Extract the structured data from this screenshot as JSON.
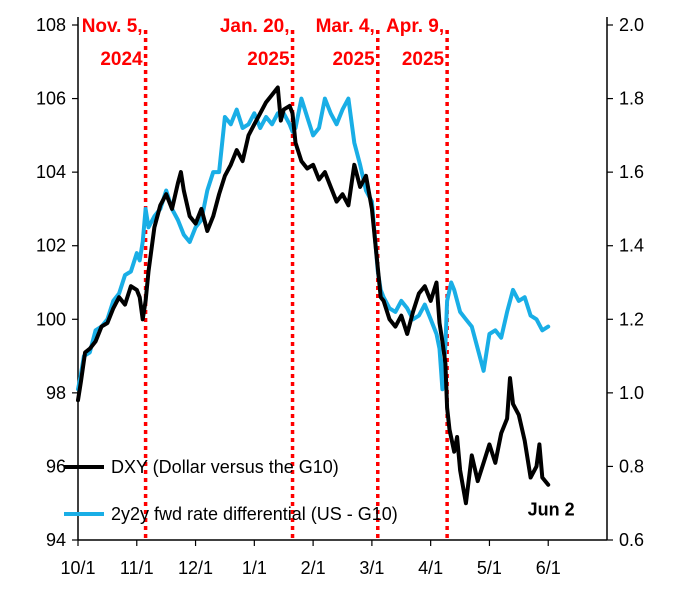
{
  "chart_data": {
    "type": "line",
    "title": "",
    "xlabel": "",
    "ylabel": "",
    "x_tick_labels": [
      "10/1",
      "11/1",
      "12/1",
      "1/1",
      "2/1",
      "3/1",
      "4/1",
      "5/1",
      "6/1"
    ],
    "x_range_months": [
      0,
      9
    ],
    "y_left": {
      "range": [
        94,
        108
      ],
      "ticks": [
        94,
        96,
        98,
        100,
        102,
        104,
        106,
        108
      ]
    },
    "y_right": {
      "range": [
        0.6,
        2.0
      ],
      "ticks": [
        "0.6",
        "0.8",
        "1.0",
        "1.2",
        "1.4",
        "1.6",
        "1.8",
        "2.0"
      ]
    },
    "grid": false,
    "legend_position": "bottom-left",
    "event_lines": [
      {
        "x": 1.15,
        "line1": "Nov. 5,",
        "line2": "2024",
        "color": "#ff0000"
      },
      {
        "x": 3.65,
        "line1": "Jan. 20,",
        "line2": "2025",
        "color": "#ff0000"
      },
      {
        "x": 5.1,
        "line1": "Mar. 4,",
        "line2": "2025",
        "color": "#ff0000"
      },
      {
        "x": 6.28,
        "line1": "Apr. 9,",
        "line2": "2025",
        "color": "#ff0000"
      }
    ],
    "annotations": [
      {
        "text": "Jun 2",
        "x": 8.05,
        "y": 94.8
      }
    ],
    "series": [
      {
        "name": "DXY (Dollar versus the G10)",
        "axis": "left",
        "color": "#000000",
        "points": [
          [
            0.0,
            97.8
          ],
          [
            0.05,
            98.3
          ],
          [
            0.12,
            99.1
          ],
          [
            0.2,
            99.2
          ],
          [
            0.3,
            99.4
          ],
          [
            0.4,
            99.8
          ],
          [
            0.5,
            99.9
          ],
          [
            0.6,
            100.3
          ],
          [
            0.7,
            100.6
          ],
          [
            0.8,
            100.4
          ],
          [
            0.9,
            100.9
          ],
          [
            1.0,
            100.8
          ],
          [
            1.05,
            100.6
          ],
          [
            1.1,
            100.0
          ],
          [
            1.15,
            100.5
          ],
          [
            1.2,
            101.3
          ],
          [
            1.3,
            102.5
          ],
          [
            1.4,
            103.1
          ],
          [
            1.5,
            103.4
          ],
          [
            1.6,
            103.0
          ],
          [
            1.7,
            103.7
          ],
          [
            1.75,
            104.0
          ],
          [
            1.8,
            103.5
          ],
          [
            1.9,
            102.8
          ],
          [
            2.0,
            102.6
          ],
          [
            2.1,
            103.0
          ],
          [
            2.2,
            102.4
          ],
          [
            2.3,
            102.8
          ],
          [
            2.4,
            103.4
          ],
          [
            2.5,
            103.9
          ],
          [
            2.6,
            104.2
          ],
          [
            2.7,
            104.6
          ],
          [
            2.8,
            104.3
          ],
          [
            2.9,
            105.0
          ],
          [
            3.0,
            105.3
          ],
          [
            3.1,
            105.6
          ],
          [
            3.2,
            105.9
          ],
          [
            3.3,
            106.1
          ],
          [
            3.4,
            106.3
          ],
          [
            3.45,
            105.4
          ],
          [
            3.5,
            105.7
          ],
          [
            3.6,
            105.8
          ],
          [
            3.65,
            105.6
          ],
          [
            3.7,
            104.8
          ],
          [
            3.8,
            104.3
          ],
          [
            3.9,
            104.1
          ],
          [
            4.0,
            104.2
          ],
          [
            4.1,
            103.8
          ],
          [
            4.2,
            104.0
          ],
          [
            4.3,
            103.6
          ],
          [
            4.4,
            103.2
          ],
          [
            4.5,
            103.4
          ],
          [
            4.6,
            103.1
          ],
          [
            4.7,
            104.2
          ],
          [
            4.8,
            103.6
          ],
          [
            4.9,
            103.9
          ],
          [
            5.0,
            103.0
          ],
          [
            5.1,
            101.4
          ],
          [
            5.15,
            100.6
          ],
          [
            5.2,
            100.5
          ],
          [
            5.3,
            100.0
          ],
          [
            5.4,
            99.8
          ],
          [
            5.5,
            100.1
          ],
          [
            5.6,
            99.6
          ],
          [
            5.7,
            100.2
          ],
          [
            5.8,
            100.7
          ],
          [
            5.9,
            100.9
          ],
          [
            6.0,
            100.5
          ],
          [
            6.1,
            101.0
          ],
          [
            6.15,
            99.9
          ],
          [
            6.2,
            99.4
          ],
          [
            6.25,
            98.8
          ],
          [
            6.28,
            97.6
          ],
          [
            6.32,
            97.0
          ],
          [
            6.4,
            96.4
          ],
          [
            6.45,
            96.8
          ],
          [
            6.5,
            95.9
          ],
          [
            6.6,
            95.0
          ],
          [
            6.7,
            96.3
          ],
          [
            6.8,
            95.6
          ],
          [
            6.9,
            96.1
          ],
          [
            7.0,
            96.6
          ],
          [
            7.1,
            96.1
          ],
          [
            7.2,
            96.9
          ],
          [
            7.3,
            97.3
          ],
          [
            7.35,
            98.4
          ],
          [
            7.4,
            97.7
          ],
          [
            7.5,
            97.4
          ],
          [
            7.6,
            96.7
          ],
          [
            7.7,
            95.7
          ],
          [
            7.8,
            96.0
          ],
          [
            7.85,
            96.6
          ],
          [
            7.9,
            95.7
          ],
          [
            8.0,
            95.5
          ]
        ]
      },
      {
        "name": "2y2y fwd rate differential (US - G10)",
        "axis": "right",
        "color": "#19aee6",
        "points": [
          [
            0.0,
            1.01
          ],
          [
            0.05,
            1.05
          ],
          [
            0.1,
            1.1
          ],
          [
            0.2,
            1.11
          ],
          [
            0.3,
            1.17
          ],
          [
            0.4,
            1.18
          ],
          [
            0.5,
            1.2
          ],
          [
            0.6,
            1.25
          ],
          [
            0.7,
            1.27
          ],
          [
            0.8,
            1.32
          ],
          [
            0.9,
            1.33
          ],
          [
            1.0,
            1.38
          ],
          [
            1.05,
            1.36
          ],
          [
            1.1,
            1.41
          ],
          [
            1.15,
            1.5
          ],
          [
            1.2,
            1.45
          ],
          [
            1.3,
            1.48
          ],
          [
            1.4,
            1.5
          ],
          [
            1.5,
            1.55
          ],
          [
            1.6,
            1.5
          ],
          [
            1.7,
            1.47
          ],
          [
            1.8,
            1.43
          ],
          [
            1.9,
            1.41
          ],
          [
            2.0,
            1.45
          ],
          [
            2.1,
            1.47
          ],
          [
            2.2,
            1.55
          ],
          [
            2.3,
            1.6
          ],
          [
            2.4,
            1.6
          ],
          [
            2.5,
            1.75
          ],
          [
            2.6,
            1.73
          ],
          [
            2.7,
            1.77
          ],
          [
            2.8,
            1.72
          ],
          [
            2.9,
            1.73
          ],
          [
            3.0,
            1.76
          ],
          [
            3.1,
            1.72
          ],
          [
            3.2,
            1.75
          ],
          [
            3.3,
            1.73
          ],
          [
            3.4,
            1.76
          ],
          [
            3.5,
            1.76
          ],
          [
            3.6,
            1.73
          ],
          [
            3.65,
            1.71
          ],
          [
            3.7,
            1.72
          ],
          [
            3.8,
            1.8
          ],
          [
            3.9,
            1.75
          ],
          [
            4.0,
            1.7
          ],
          [
            4.1,
            1.72
          ],
          [
            4.2,
            1.8
          ],
          [
            4.3,
            1.76
          ],
          [
            4.4,
            1.73
          ],
          [
            4.5,
            1.77
          ],
          [
            4.6,
            1.8
          ],
          [
            4.7,
            1.68
          ],
          [
            4.8,
            1.62
          ],
          [
            4.9,
            1.55
          ],
          [
            5.0,
            1.52
          ],
          [
            5.1,
            1.33
          ],
          [
            5.15,
            1.28
          ],
          [
            5.2,
            1.26
          ],
          [
            5.3,
            1.23
          ],
          [
            5.4,
            1.22
          ],
          [
            5.5,
            1.25
          ],
          [
            5.6,
            1.23
          ],
          [
            5.7,
            1.2
          ],
          [
            5.8,
            1.21
          ],
          [
            5.9,
            1.24
          ],
          [
            6.0,
            1.2
          ],
          [
            6.1,
            1.16
          ],
          [
            6.15,
            1.12
          ],
          [
            6.2,
            1.01
          ],
          [
            6.25,
            1.13
          ],
          [
            6.28,
            1.25
          ],
          [
            6.35,
            1.3
          ],
          [
            6.4,
            1.28
          ],
          [
            6.5,
            1.22
          ],
          [
            6.6,
            1.2
          ],
          [
            6.7,
            1.18
          ],
          [
            6.8,
            1.12
          ],
          [
            6.9,
            1.06
          ],
          [
            7.0,
            1.16
          ],
          [
            7.1,
            1.17
          ],
          [
            7.2,
            1.15
          ],
          [
            7.3,
            1.22
          ],
          [
            7.4,
            1.28
          ],
          [
            7.5,
            1.25
          ],
          [
            7.6,
            1.26
          ],
          [
            7.7,
            1.21
          ],
          [
            7.8,
            1.2
          ],
          [
            7.9,
            1.17
          ],
          [
            8.0,
            1.18
          ]
        ]
      }
    ]
  }
}
